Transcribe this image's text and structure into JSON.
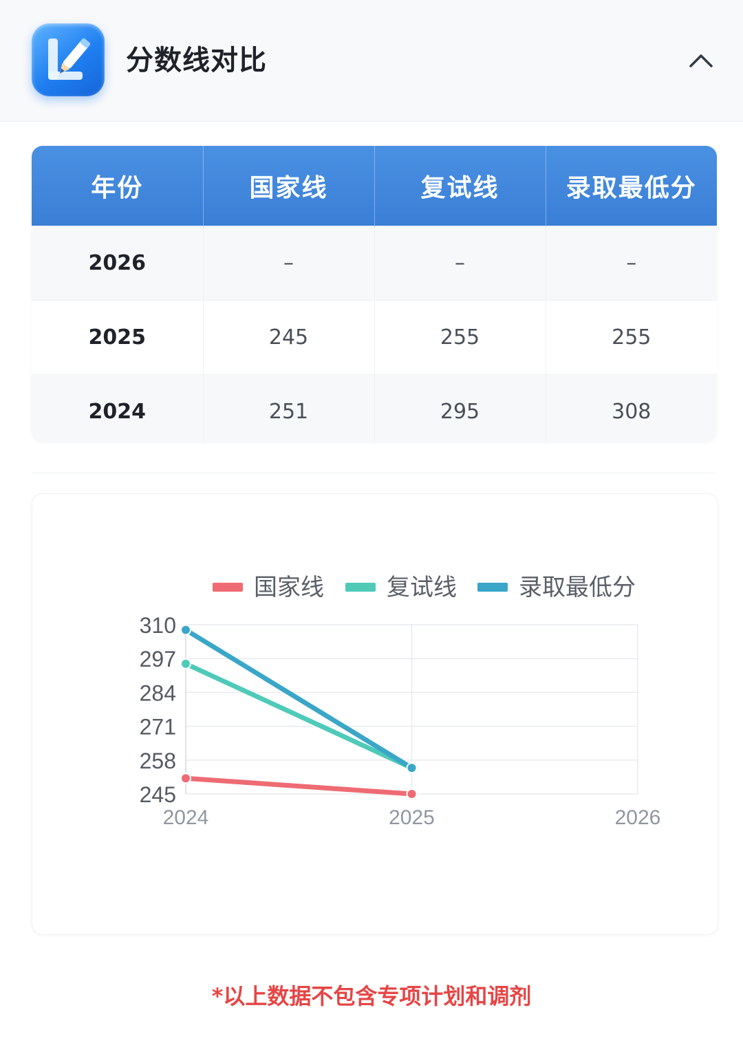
{
  "header": {
    "title": "分数线对比",
    "app_icon": "pencil-notebook-icon",
    "collapse_icon": "chevron-up-icon"
  },
  "table": {
    "columns": [
      "年份",
      "国家线",
      "复试线",
      "录取最低分"
    ],
    "rows": [
      [
        "2026",
        "–",
        "–",
        "–"
      ],
      [
        "2025",
        "245",
        "255",
        "255"
      ],
      [
        "2024",
        "251",
        "295",
        "308"
      ]
    ],
    "header_color": "#3f85da"
  },
  "chart_data": {
    "type": "line",
    "x": [
      "2024",
      "2025",
      "2026"
    ],
    "series": [
      {
        "name": "国家线",
        "color": "#ef6b73",
        "values": [
          251,
          245,
          null
        ]
      },
      {
        "name": "复试线",
        "color": "#4fcab9",
        "values": [
          295,
          255,
          null
        ]
      },
      {
        "name": "录取最低分",
        "color": "#3aa6c8",
        "values": [
          308,
          255,
          null
        ]
      }
    ],
    "yticks": [
      "245",
      "258",
      "271",
      "284",
      "297",
      "310"
    ],
    "ylim": [
      245,
      310
    ],
    "legend_position": "top-center",
    "grid": true
  },
  "footer": {
    "note": "*以上数据不包含专项计划和调剂",
    "note_color": "#e64545"
  }
}
